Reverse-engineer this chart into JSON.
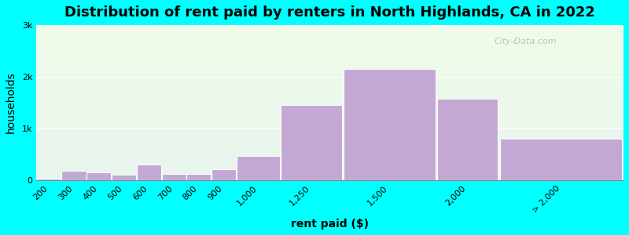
{
  "title": "Distribution of rent paid by renters in North Highlands, CA in 2022",
  "xlabel": "rent paid ($)",
  "ylabel": "households",
  "background_color": "#00ffff",
  "bar_color": "#c4a8d4",
  "bar_edge_color": "#ffffff",
  "categories": [
    "200",
    "300",
    "400",
    "500",
    "600",
    "700",
    "800",
    "900",
    "1,000",
    "1,250",
    "1,500",
    "2,000",
    "> 2,000"
  ],
  "bin_edges": [
    150,
    250,
    350,
    450,
    550,
    650,
    750,
    850,
    950,
    1125,
    1375,
    1750,
    2000,
    2500
  ],
  "values": [
    30,
    180,
    160,
    110,
    310,
    130,
    120,
    220,
    470,
    1450,
    2150,
    1580,
    800
  ],
  "ylim": [
    0,
    3000
  ],
  "yticks": [
    0,
    1000,
    2000,
    3000
  ],
  "ytick_labels": [
    "0",
    "1k",
    "2k",
    "3k"
  ],
  "title_fontsize": 13,
  "axis_label_fontsize": 10,
  "tick_fontsize": 8,
  "watermark_text": "City-Data.com",
  "grad_top": "#f0fbe8",
  "grad_bottom": "#e8f5ee"
}
